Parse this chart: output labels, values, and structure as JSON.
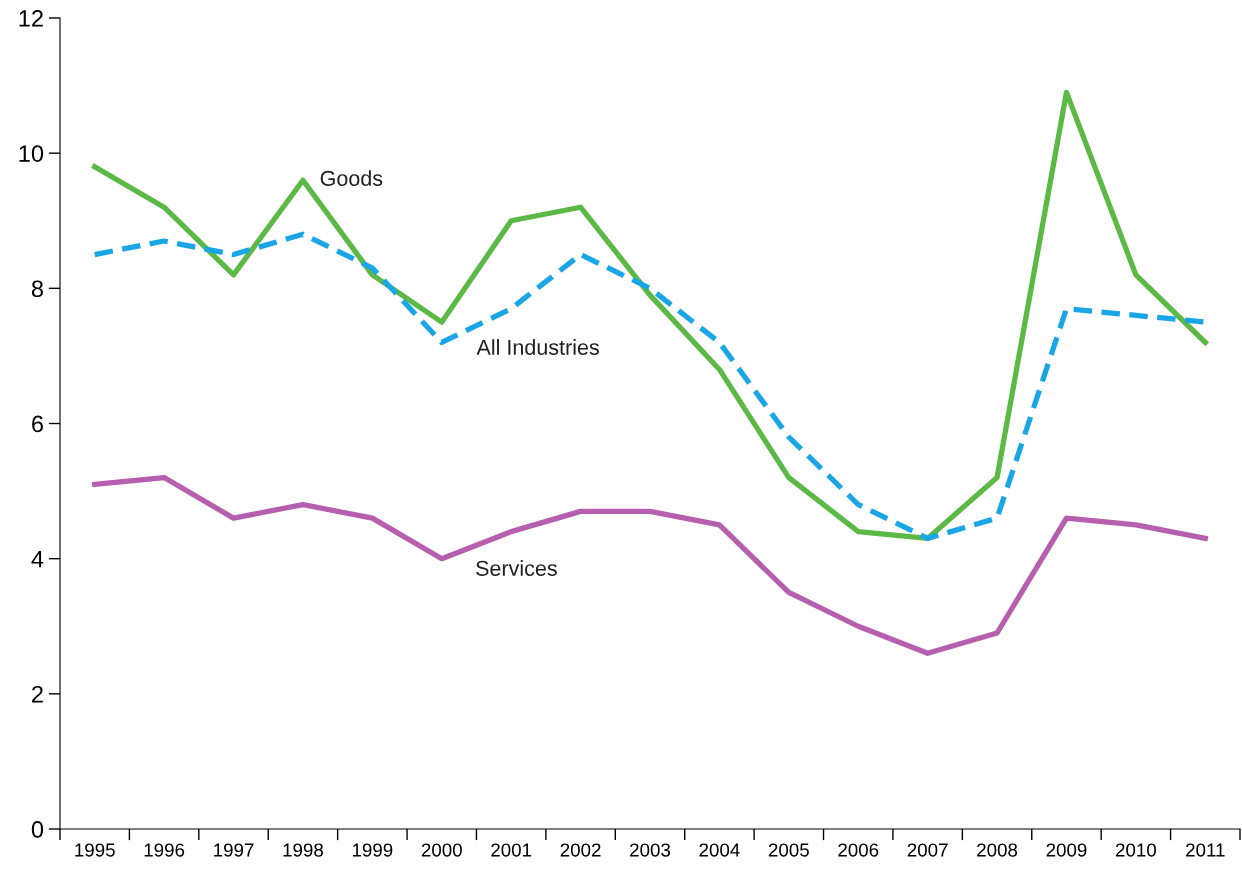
{
  "chart_data": {
    "type": "line",
    "categories": [
      "1995",
      "1996",
      "1997",
      "1998",
      "1999",
      "2000",
      "2001",
      "2002",
      "2003",
      "2004",
      "2005",
      "2006",
      "2007",
      "2008",
      "2009",
      "2010",
      "2011"
    ],
    "series": [
      {
        "name": "Goods",
        "color": "#5cb946",
        "line_style": "solid",
        "values": [
          9.8,
          9.2,
          8.2,
          9.6,
          8.2,
          7.5,
          9.0,
          9.2,
          7.9,
          6.8,
          5.2,
          4.4,
          4.3,
          5.2,
          10.9,
          8.2,
          7.2
        ]
      },
      {
        "name": "All Industries",
        "color": "#1aa6e6",
        "line_style": "dashed",
        "values": [
          8.5,
          8.7,
          8.5,
          8.8,
          8.3,
          7.2,
          7.7,
          8.5,
          8.0,
          7.2,
          5.8,
          4.8,
          4.3,
          4.6,
          7.7,
          7.6,
          7.5
        ]
      },
      {
        "name": "Services",
        "color": "#b55fae",
        "line_style": "solid",
        "values": [
          5.1,
          5.2,
          4.6,
          4.8,
          4.6,
          4.0,
          4.4,
          4.7,
          4.7,
          4.5,
          3.5,
          3.0,
          2.6,
          2.9,
          4.6,
          4.5,
          4.3
        ]
      }
    ],
    "ylim": [
      0,
      12
    ],
    "yticks": [
      0,
      2,
      4,
      6,
      8,
      10,
      12
    ],
    "grid": false,
    "legend": false,
    "marker": "none"
  }
}
